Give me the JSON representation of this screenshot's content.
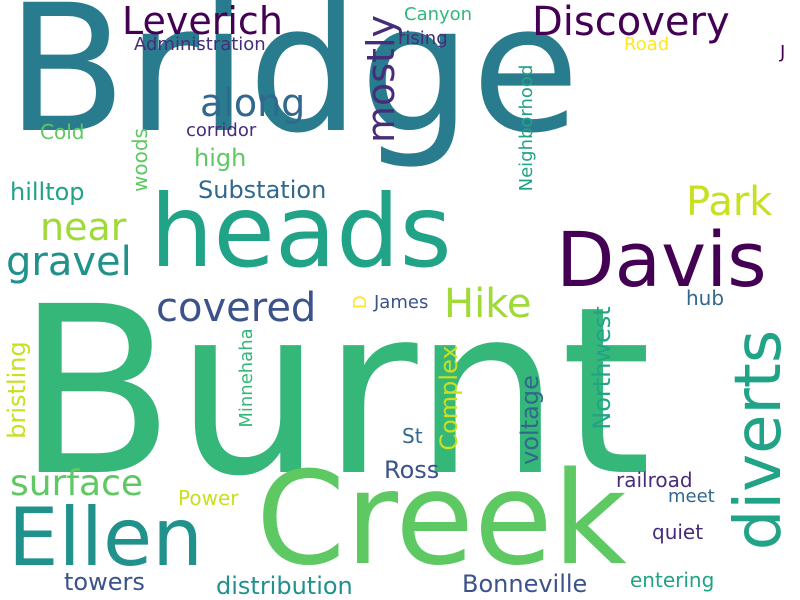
{
  "words": {
    "burnt": "Burnt",
    "bridge": "Bridge",
    "creek": "Creek",
    "heads": "heads",
    "davis": "Davis",
    "ellen": "Ellen",
    "diverts": "diverts",
    "discovery": "Discovery",
    "leverich": "Leverich",
    "park": "Park",
    "hike": "Hike",
    "covered": "covered",
    "gravel": "gravel",
    "near": "near",
    "along": "along",
    "mostly": "mostly",
    "surface": "surface",
    "substation": "Substation",
    "high": "high",
    "hilltop": "hilltop",
    "woods": "woods",
    "cold": "Cold",
    "corridor": "corridor",
    "administration": "Administration",
    "rising": "rising",
    "canyon": "Canyon",
    "road": "Road",
    "neighborhood": "Neighborhood",
    "northwest": "Northwest",
    "complex": "Complex",
    "voltage": "voltage",
    "bristling": "bristling",
    "minnehaha": "Minnehaha",
    "james": "James",
    "d": "D",
    "hub": "hub",
    "st": "St",
    "ross": "Ross",
    "power": "Power",
    "towers": "towers",
    "distribution": "distribution",
    "bonneville": "Bonneville",
    "entering": "entering",
    "railroad": "railroad",
    "meet": "meet",
    "quiet": "quiet",
    "j": "J"
  },
  "colors": {
    "dark_purple": "#440154",
    "indigo": "#472c7a",
    "blue": "#3b528b",
    "slate": "#31688e",
    "teal": "#287c8e",
    "teal_green": "#21918c",
    "green_teal": "#20a386",
    "green": "#35b779",
    "light_green": "#5ec962",
    "lime": "#a0da39",
    "yellow_green": "#c8e020",
    "yellow": "#fde725"
  }
}
